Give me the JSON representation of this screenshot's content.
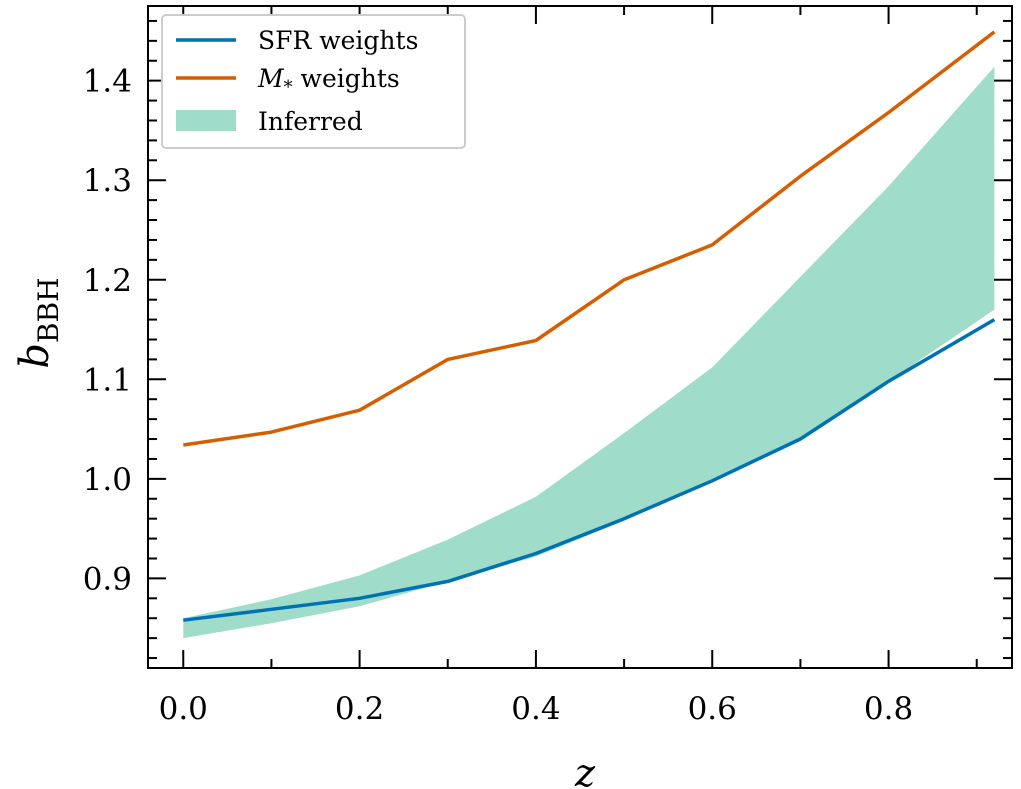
{
  "chart_data": {
    "type": "line",
    "xlabel": "z",
    "ylabel": "b",
    "ylabel_subscript": "BBH",
    "xlim": [
      -0.04,
      0.94
    ],
    "ylim": [
      0.81,
      1.475
    ],
    "xticks": [
      0.0,
      0.1,
      0.2,
      0.3,
      0.4,
      0.5,
      0.6,
      0.7,
      0.8,
      0.9
    ],
    "xtick_labels": [
      "0.0",
      "0.2",
      "0.4",
      "0.6",
      "0.8"
    ],
    "xtick_label_values": [
      0.0,
      0.2,
      0.4,
      0.6,
      0.8
    ],
    "yticks": [
      0.9,
      1.0,
      1.1,
      1.2,
      1.3,
      1.4
    ],
    "ytick_labels": [
      "0.9",
      "1.0",
      "1.1",
      "1.2",
      "1.3",
      "1.4"
    ],
    "x": [
      0.0,
      0.1,
      0.2,
      0.3,
      0.4,
      0.5,
      0.6,
      0.7,
      0.8,
      0.92
    ],
    "series": [
      {
        "name": "SFR weights",
        "color": "#0072b2",
        "values": [
          0.858,
          0.869,
          0.88,
          0.897,
          0.925,
          0.96,
          0.998,
          1.04,
          1.098,
          1.16
        ]
      },
      {
        "name": "M",
        "name_subscript": "*",
        "name_suffix": " weights",
        "color": "#d55e00",
        "values": [
          1.034,
          1.047,
          1.069,
          1.12,
          1.139,
          1.2,
          1.235,
          1.304,
          1.368,
          1.449
        ]
      }
    ],
    "band": {
      "name": "Inferred",
      "color": "#9fdcc9",
      "lower": [
        0.84,
        0.855,
        0.872,
        0.897,
        0.922,
        0.958,
        0.997,
        1.04,
        1.098,
        1.17
      ],
      "upper": [
        0.86,
        0.879,
        0.903,
        0.939,
        0.982,
        1.046,
        1.112,
        1.203,
        1.294,
        1.414
      ]
    },
    "legend_position": "top-left"
  }
}
